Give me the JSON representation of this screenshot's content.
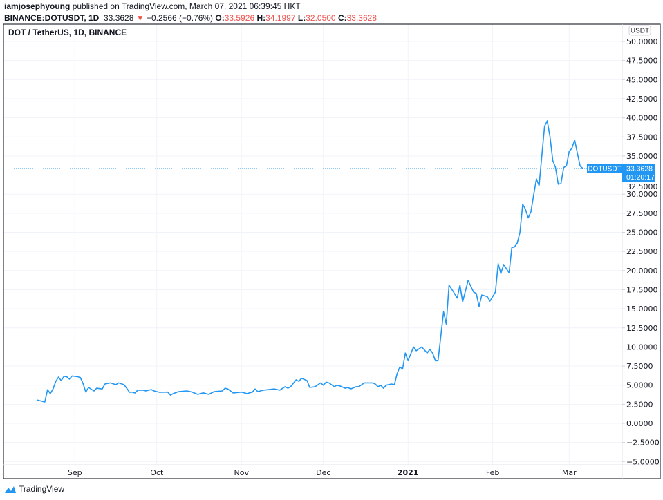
{
  "header": {
    "author": "iamjosephyoung",
    "published": "published on TradingView.com, March 07, 2021 06:39:45 HKT",
    "symbol": "BINANCE:DOTUSDT, 1D",
    "last": "33.3628",
    "change": "−0.2566 (−0.76%)",
    "change_direction_icon": "triangle-down-icon",
    "o_label": "O:",
    "o": "33.5926",
    "h_label": "H:",
    "h": "34.1997",
    "l_label": "L:",
    "l": "32.0500",
    "c_label": "C:",
    "c": "33.3628"
  },
  "chart": {
    "legend_title": "DOT / TetherUS, 1D, BINANCE",
    "currency": "USDT",
    "price_tag_symbol": "DOTUSDT",
    "price_tag_value": "33.3628",
    "price_tag_countdown": "01:20:17"
  },
  "footer": {
    "brand": "TradingView"
  },
  "colors": {
    "line": "#2196f3",
    "down": "#ef5350",
    "grid": "#f0f3fa",
    "tag": "#2196f3"
  },
  "chart_data": {
    "type": "line",
    "title": "DOT / TetherUS, 1D, BINANCE",
    "ylabel": "USDT",
    "ylim": [
      -5,
      50
    ],
    "yticks": [
      "50.0000",
      "47.5000",
      "45.0000",
      "42.5000",
      "40.0000",
      "37.5000",
      "35.0000",
      "32.5000",
      "30.0000",
      "27.5000",
      "25.0000",
      "22.5000",
      "20.0000",
      "17.5000",
      "15.0000",
      "12.5000",
      "10.0000",
      "7.5000",
      "5.0000",
      "2.5000",
      "0.0000",
      "−2.5000",
      "−5.0000"
    ],
    "xticks": [
      {
        "label": "Sep",
        "date": "2020-09-01"
      },
      {
        "label": "Oct",
        "date": "2020-10-01"
      },
      {
        "label": "Nov",
        "date": "2020-11-01"
      },
      {
        "label": "Dec",
        "date": "2020-12-01"
      },
      {
        "label": "2021",
        "date": "2021-01-01",
        "bold": true
      },
      {
        "label": "Feb",
        "date": "2021-02-01"
      },
      {
        "label": "Mar",
        "date": "2021-03-01"
      }
    ],
    "grid": true,
    "last_price": 33.3628,
    "points": [
      [
        "2020-08-18",
        3.07
      ],
      [
        "2020-08-21",
        2.8
      ],
      [
        "2020-08-22",
        4.4
      ],
      [
        "2020-08-23",
        3.9
      ],
      [
        "2020-08-24",
        4.5
      ],
      [
        "2020-08-25",
        5.5
      ],
      [
        "2020-08-26",
        6.06
      ],
      [
        "2020-08-27",
        5.6
      ],
      [
        "2020-08-28",
        6.15
      ],
      [
        "2020-08-29",
        6.1
      ],
      [
        "2020-08-30",
        5.8
      ],
      [
        "2020-08-31",
        6.2
      ],
      [
        "2020-09-02",
        6.1
      ],
      [
        "2020-09-03",
        6.0
      ],
      [
        "2020-09-04",
        5.2
      ],
      [
        "2020-09-05",
        4.1
      ],
      [
        "2020-09-06",
        4.7
      ],
      [
        "2020-09-08",
        4.25
      ],
      [
        "2020-09-09",
        4.6
      ],
      [
        "2020-09-11",
        4.5
      ],
      [
        "2020-09-12",
        5.15
      ],
      [
        "2020-09-14",
        5.3
      ],
      [
        "2020-09-16",
        5.06
      ],
      [
        "2020-09-17",
        5.3
      ],
      [
        "2020-09-19",
        5.06
      ],
      [
        "2020-09-20",
        4.6
      ],
      [
        "2020-09-21",
        4.07
      ],
      [
        "2020-09-22",
        4.1
      ],
      [
        "2020-09-23",
        3.98
      ],
      [
        "2020-09-24",
        4.34
      ],
      [
        "2020-09-26",
        4.34
      ],
      [
        "2020-09-27",
        4.25
      ],
      [
        "2020-09-29",
        4.43
      ],
      [
        "2020-09-30",
        4.25
      ],
      [
        "2020-10-02",
        4.07
      ],
      [
        "2020-10-05",
        4.1
      ],
      [
        "2020-10-06",
        3.7
      ],
      [
        "2020-10-07",
        3.9
      ],
      [
        "2020-10-09",
        4.16
      ],
      [
        "2020-10-12",
        4.25
      ],
      [
        "2020-10-14",
        4.1
      ],
      [
        "2020-10-16",
        3.8
      ],
      [
        "2020-10-18",
        4.0
      ],
      [
        "2020-10-20",
        3.8
      ],
      [
        "2020-10-22",
        4.16
      ],
      [
        "2020-10-25",
        4.25
      ],
      [
        "2020-10-26",
        4.6
      ],
      [
        "2020-10-27",
        4.5
      ],
      [
        "2020-10-29",
        3.98
      ],
      [
        "2020-11-01",
        4.1
      ],
      [
        "2020-11-03",
        3.9
      ],
      [
        "2020-11-05",
        4.1
      ],
      [
        "2020-11-06",
        4.5
      ],
      [
        "2020-11-07",
        4.16
      ],
      [
        "2020-11-09",
        4.35
      ],
      [
        "2020-11-13",
        4.5
      ],
      [
        "2020-11-15",
        4.35
      ],
      [
        "2020-11-17",
        4.8
      ],
      [
        "2020-11-18",
        4.6
      ],
      [
        "2020-11-19",
        4.8
      ],
      [
        "2020-11-21",
        5.7
      ],
      [
        "2020-11-22",
        5.5
      ],
      [
        "2020-11-23",
        5.9
      ],
      [
        "2020-11-25",
        5.6
      ],
      [
        "2020-11-26",
        4.7
      ],
      [
        "2020-11-28",
        4.8
      ],
      [
        "2020-11-30",
        5.3
      ],
      [
        "2020-12-01",
        5.0
      ],
      [
        "2020-12-02",
        5.4
      ],
      [
        "2020-12-03",
        5.3
      ],
      [
        "2020-12-05",
        4.8
      ],
      [
        "2020-12-06",
        5.0
      ],
      [
        "2020-12-07",
        4.9
      ],
      [
        "2020-12-09",
        4.6
      ],
      [
        "2020-12-10",
        4.7
      ],
      [
        "2020-12-11",
        4.5
      ],
      [
        "2020-12-13",
        4.8
      ],
      [
        "2020-12-14",
        4.8
      ],
      [
        "2020-12-16",
        5.3
      ],
      [
        "2020-12-19",
        5.3
      ],
      [
        "2020-12-20",
        5.15
      ],
      [
        "2020-12-21",
        4.8
      ],
      [
        "2020-12-22",
        5.0
      ],
      [
        "2020-12-23",
        4.6
      ],
      [
        "2020-12-24",
        5.0
      ],
      [
        "2020-12-26",
        5.15
      ],
      [
        "2020-12-27",
        5.06
      ],
      [
        "2020-12-28",
        6.5
      ],
      [
        "2020-12-29",
        7.4
      ],
      [
        "2020-12-30",
        7.1
      ],
      [
        "2020-12-31",
        9.2
      ],
      [
        "2021-01-01",
        8.2
      ],
      [
        "2021-01-03",
        10.0
      ],
      [
        "2021-01-04",
        9.5
      ],
      [
        "2021-01-06",
        10.0
      ],
      [
        "2021-01-08",
        9.2
      ],
      [
        "2021-01-09",
        9.7
      ],
      [
        "2021-01-10",
        9.2
      ],
      [
        "2021-01-11",
        8.2
      ],
      [
        "2021-01-12",
        8.2
      ],
      [
        "2021-01-14",
        14.6
      ],
      [
        "2021-01-15",
        13.0
      ],
      [
        "2021-01-16",
        18.1
      ],
      [
        "2021-01-18",
        17.0
      ],
      [
        "2021-01-19",
        16.4
      ],
      [
        "2021-01-20",
        18.1
      ],
      [
        "2021-01-21",
        15.9
      ],
      [
        "2021-01-23",
        18.7
      ],
      [
        "2021-01-25",
        17.2
      ],
      [
        "2021-01-26",
        17.0
      ],
      [
        "2021-01-27",
        15.3
      ],
      [
        "2021-01-28",
        16.8
      ],
      [
        "2021-01-30",
        16.6
      ],
      [
        "2021-01-31",
        16.0
      ],
      [
        "2021-02-02",
        17.2
      ],
      [
        "2021-02-03",
        20.9
      ],
      [
        "2021-02-04",
        19.6
      ],
      [
        "2021-02-05",
        20.8
      ],
      [
        "2021-02-07",
        19.7
      ],
      [
        "2021-02-08",
        23.0
      ],
      [
        "2021-02-09",
        23.1
      ],
      [
        "2021-02-10",
        23.6
      ],
      [
        "2021-02-11",
        25.0
      ],
      [
        "2021-02-12",
        28.7
      ],
      [
        "2021-02-13",
        28.0
      ],
      [
        "2021-02-14",
        26.9
      ],
      [
        "2021-02-15",
        27.7
      ],
      [
        "2021-02-16",
        29.9
      ],
      [
        "2021-02-17",
        32.0
      ],
      [
        "2021-02-18",
        31.1
      ],
      [
        "2021-02-19",
        35.1
      ],
      [
        "2021-02-20",
        38.9
      ],
      [
        "2021-02-21",
        39.6
      ],
      [
        "2021-02-22",
        37.5
      ],
      [
        "2021-02-23",
        34.4
      ],
      [
        "2021-02-24",
        33.5
      ],
      [
        "2021-02-25",
        31.3
      ],
      [
        "2021-02-26",
        31.4
      ],
      [
        "2021-02-27",
        33.5
      ],
      [
        "2021-02-28",
        33.7
      ],
      [
        "2021-03-01",
        35.6
      ],
      [
        "2021-03-02",
        36.0
      ],
      [
        "2021-03-03",
        37.1
      ],
      [
        "2021-03-04",
        35.4
      ],
      [
        "2021-03-05",
        33.7
      ],
      [
        "2021-03-06",
        33.3628
      ]
    ]
  }
}
